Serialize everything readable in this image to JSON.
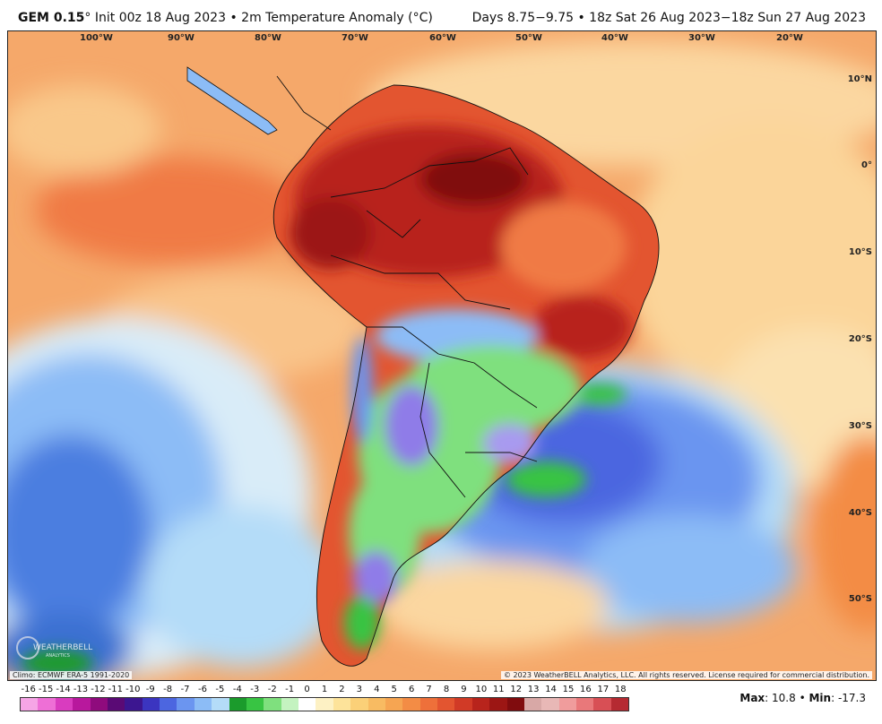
{
  "header": {
    "model": "GEM 0.15",
    "degree_sign": "°",
    "init_text": "Init 00z 18 Aug 2023",
    "separator": "•",
    "variable": "2m Temperature Anomaly (°C)",
    "valid_text": "Days 8.75−9.75 • 18z Sat 26 Aug 2023−18z Sun 27 Aug 2023"
  },
  "map": {
    "longitude_labels": [
      "100°W",
      "90°W",
      "80°W",
      "70°W",
      "60°W",
      "50°W",
      "40°W",
      "30°W",
      "20°W"
    ],
    "latitude_labels": [
      "10°N",
      "0°",
      "10°S",
      "20°S",
      "30°S",
      "40°S",
      "50°S"
    ],
    "climo_note": "Climo: ECMWF ERA-5 1991-2020",
    "copyright": "© 2023 WeatherBELL Analytics, LLC. All rights reserved. License required for commercial distribution.",
    "logo_text": "WEATHERBELL",
    "logo_subtext": "ANALYTICS"
  },
  "colorbar": {
    "labels": [
      "-16",
      "-15",
      "-14",
      "-13",
      "-12",
      "-11",
      "-10",
      "-9",
      "-8",
      "-7",
      "-6",
      "-5",
      "-4",
      "-3",
      "-2",
      "-1",
      "0",
      "1",
      "2",
      "3",
      "4",
      "5",
      "6",
      "7",
      "8",
      "9",
      "10",
      "11",
      "12",
      "13",
      "14",
      "15",
      "16",
      "17",
      "18"
    ],
    "colors": [
      "#f6a5e6",
      "#ee6fd6",
      "#d93cbf",
      "#b8189d",
      "#8f0b7d",
      "#5a0a75",
      "#3c1690",
      "#3b35c0",
      "#4c66e0",
      "#6b95f0",
      "#8cbcf6",
      "#b4dcf8",
      "#1b9b2c",
      "#38c443",
      "#7fe07e",
      "#c4f3c0",
      "#ffffff",
      "#fdf1c4",
      "#fde39a",
      "#fbd078",
      "#f8bb62",
      "#f6a552",
      "#f38c45",
      "#ee703a",
      "#e35530",
      "#d13a26",
      "#b8241c",
      "#9c1614",
      "#800c0e",
      "#d8a8a6",
      "#e8b8b6",
      "#f09c9c",
      "#e9787a",
      "#d84f55",
      "#b52a32"
    ],
    "colors_note_unused": ""
  },
  "stats": {
    "max_label": "Max",
    "max_value": "10.8",
    "min_label": "Min",
    "min_value": "-17.3",
    "bullet": "•"
  }
}
